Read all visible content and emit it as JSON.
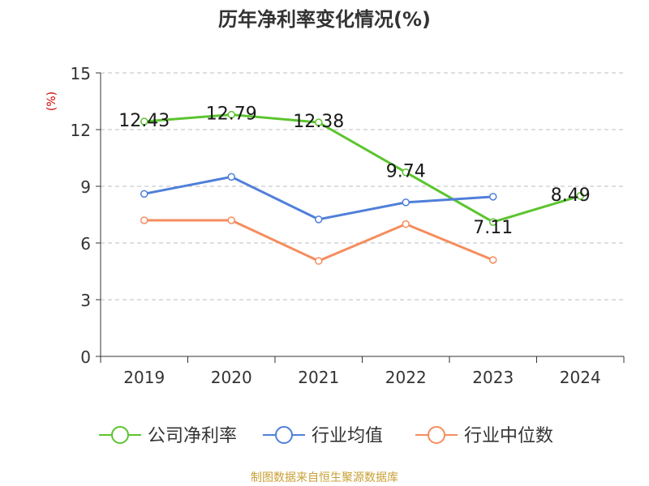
{
  "chart_data": {
    "type": "line",
    "title": "历年净利率变化情况(%)",
    "ylabel": "(%)",
    "xlabel": "",
    "categories": [
      "2019",
      "2020",
      "2021",
      "2022",
      "2023",
      "2024"
    ],
    "ylim": [
      0,
      15
    ],
    "yticks": [
      0,
      3,
      6,
      9,
      12,
      15
    ],
    "grid": true,
    "legend_position": "bottom",
    "series": [
      {
        "name": "公司净利率",
        "color": "#5BC42E",
        "values": [
          12.43,
          12.79,
          12.38,
          9.74,
          7.11,
          8.49
        ],
        "labels": [
          "12.43",
          "12.79",
          "12.38",
          "9.74",
          "7.11",
          "8.49"
        ]
      },
      {
        "name": "行业均值",
        "color": "#4F7FD9",
        "values": [
          8.6,
          9.5,
          7.25,
          8.15,
          8.45,
          null
        ]
      },
      {
        "name": "行业中位数",
        "color": "#F58D5E",
        "values": [
          7.2,
          7.2,
          5.05,
          7.0,
          5.1,
          null
        ]
      }
    ],
    "source": "制图数据来自恒生聚源数据库"
  }
}
